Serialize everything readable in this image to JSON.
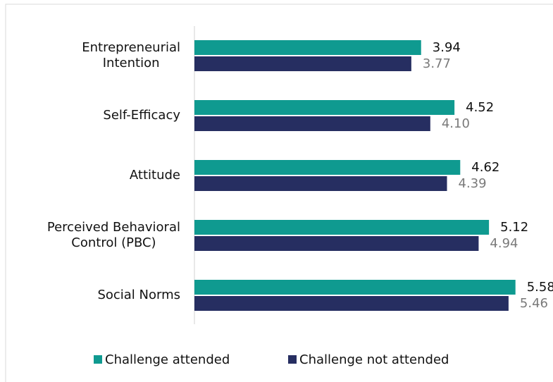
{
  "chart_data": {
    "type": "hbar",
    "categories": [
      "Entrepreneurial\nIntention",
      "Self-Efficacy",
      "Attitude",
      "Perceived Behavioral\nControl (PBC)",
      "Social Norms"
    ],
    "series": [
      {
        "name": "Challenge attended",
        "color": "#0f9a90",
        "values": [
          3.94,
          4.52,
          4.62,
          5.12,
          5.58
        ]
      },
      {
        "name": "Challenge not attended",
        "color": "#262e61",
        "values": [
          3.77,
          4.1,
          4.39,
          4.94,
          5.46
        ]
      }
    ],
    "value_labels": [
      [
        "3.94",
        "4.52",
        "4.62",
        "5.12",
        "5.58"
      ],
      [
        "3.77",
        "4.10",
        "4.39",
        "4.94",
        "5.46"
      ]
    ],
    "xlim": [
      0,
      6
    ],
    "legend": "bottom"
  }
}
